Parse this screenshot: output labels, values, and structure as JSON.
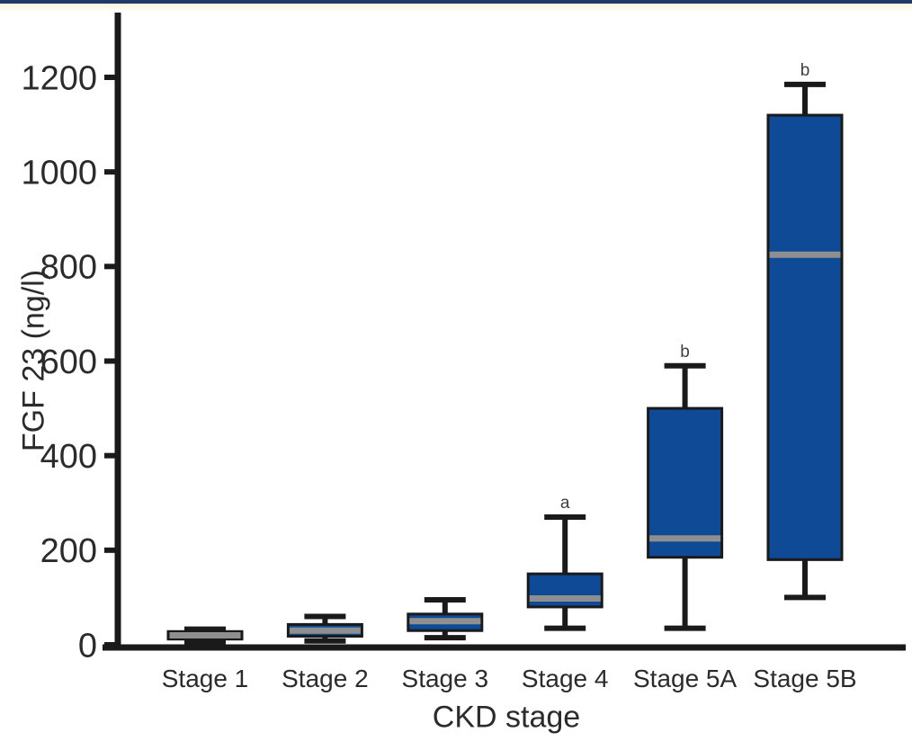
{
  "figure": {
    "top_border_color": "#1f3a68",
    "top_band_color": "#faf4dc",
    "background": "#ffffff",
    "text_color": "#2b2b2b",
    "annotation_color": "#3f3f3f"
  },
  "chart_data": {
    "type": "box",
    "xlabel": "CKD stage",
    "ylabel": "FGF 23 (ng/l)",
    "categories": [
      "Stage 1",
      "Stage 2",
      "Stage 3",
      "Stage 4",
      "Stage 5A",
      "Stage 5B"
    ],
    "yticks": [
      0,
      200,
      400,
      600,
      800,
      1000,
      1200
    ],
    "ylim": [
      0,
      1330
    ],
    "grid": false,
    "legend": "none",
    "box_color": "#0e4a96",
    "median_color": "#8f8f8f",
    "stroke_color": "#1a1a1a",
    "series": [
      {
        "category": "Stage 1",
        "min": 5,
        "q1": 12,
        "median": 20,
        "q3": 28,
        "max": 33,
        "annotation": ""
      },
      {
        "category": "Stage 2",
        "min": 8,
        "q1": 18,
        "median": 30,
        "q3": 43,
        "max": 60,
        "annotation": ""
      },
      {
        "category": "Stage 3",
        "min": 15,
        "q1": 30,
        "median": 50,
        "q3": 65,
        "max": 95,
        "annotation": ""
      },
      {
        "category": "Stage 4",
        "min": 35,
        "q1": 80,
        "median": 98,
        "q3": 150,
        "max": 270,
        "annotation": "a"
      },
      {
        "category": "Stage 5A",
        "min": 35,
        "q1": 185,
        "median": 225,
        "q3": 500,
        "max": 590,
        "annotation": "b"
      },
      {
        "category": "Stage 5B",
        "min": 100,
        "q1": 180,
        "median": 825,
        "q3": 1120,
        "max": 1185,
        "annotation": "b"
      }
    ]
  }
}
